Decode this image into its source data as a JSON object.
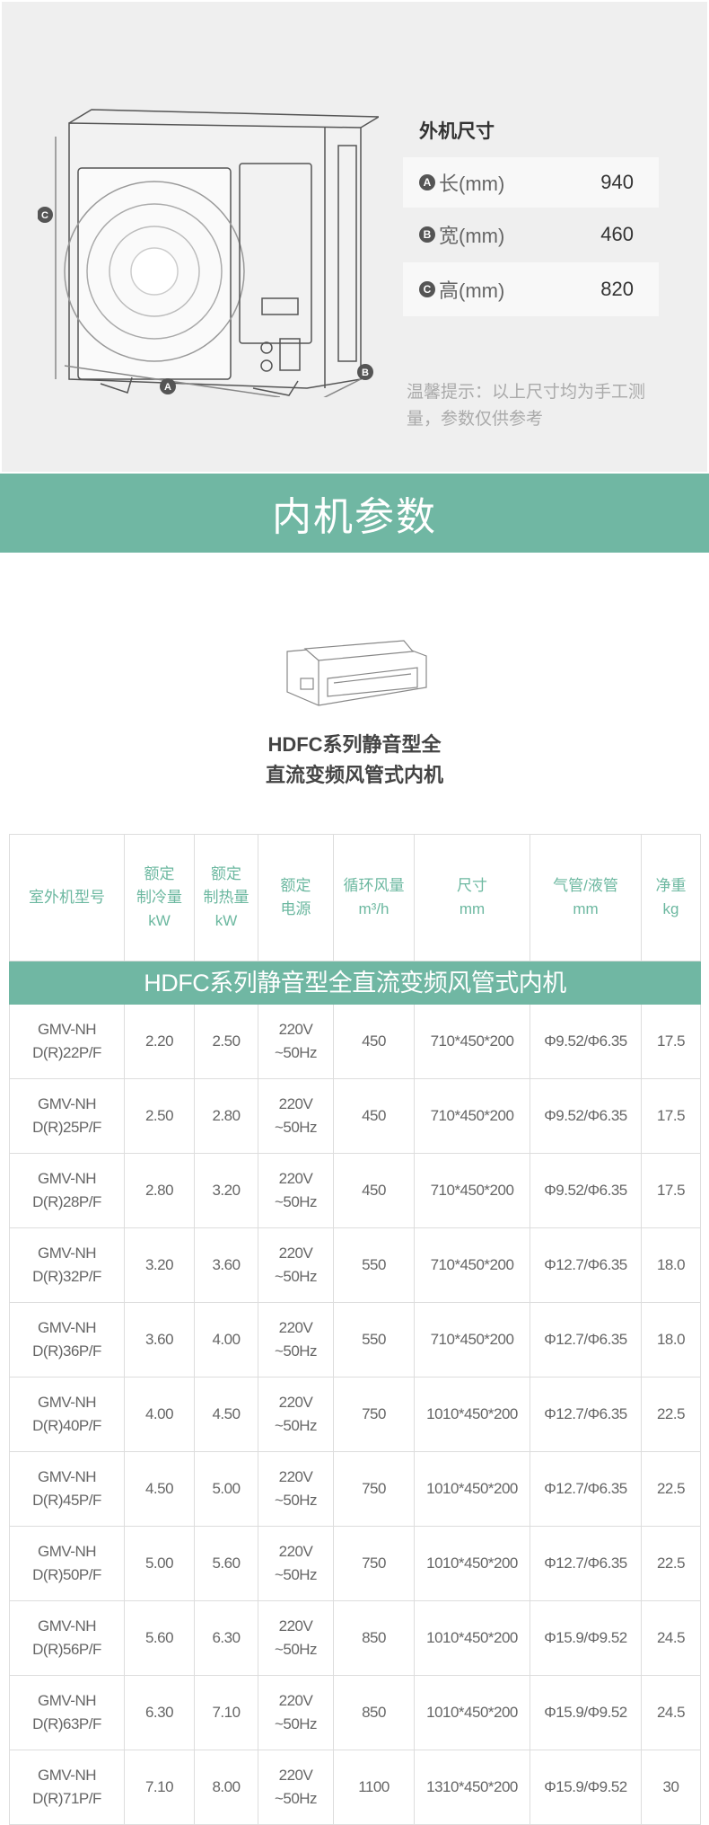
{
  "outdoor": {
    "title": "外机尺寸",
    "dims": [
      {
        "badge": "A",
        "label": "长(mm)",
        "value": "940"
      },
      {
        "badge": "B",
        "label": "宽(mm)",
        "value": "460"
      },
      {
        "badge": "C",
        "label": "高(mm)",
        "value": "820"
      }
    ],
    "note": "温馨提示：以上尺寸均为手工测量，参数仅供参考",
    "diagram_labels": {
      "a": "A",
      "b": "B",
      "c": "C"
    }
  },
  "section_title": "内机参数",
  "product_title_line1": "HDFC系列静音型全",
  "product_title_line2": "直流变频风管式内机",
  "colors": {
    "accent": "#70b7a3",
    "header_text": "#6cb8a0"
  },
  "table": {
    "headers": [
      "室外机型号",
      "额定\n制冷量\nkW",
      "额定\n制热量\nkW",
      "额定\n电源",
      "循环风量\nm³/h",
      "尺寸\nmm",
      "气管/液管\nmm",
      "净重\nkg"
    ],
    "series": "HDFC系列静音型全直流变频风管式内机",
    "rows": [
      [
        "GMV-NH\nD(R)22P/F",
        "2.20",
        "2.50",
        "220V\n~50Hz",
        "450",
        "710*450*200",
        "Φ9.52/Φ6.35",
        "17.5"
      ],
      [
        "GMV-NH\nD(R)25P/F",
        "2.50",
        "2.80",
        "220V\n~50Hz",
        "450",
        "710*450*200",
        "Φ9.52/Φ6.35",
        "17.5"
      ],
      [
        "GMV-NH\nD(R)28P/F",
        "2.80",
        "3.20",
        "220V\n~50Hz",
        "450",
        "710*450*200",
        "Φ9.52/Φ6.35",
        "17.5"
      ],
      [
        "GMV-NH\nD(R)32P/F",
        "3.20",
        "3.60",
        "220V\n~50Hz",
        "550",
        "710*450*200",
        "Φ12.7/Φ6.35",
        "18.0"
      ],
      [
        "GMV-NH\nD(R)36P/F",
        "3.60",
        "4.00",
        "220V\n~50Hz",
        "550",
        "710*450*200",
        "Φ12.7/Φ6.35",
        "18.0"
      ],
      [
        "GMV-NH\nD(R)40P/F",
        "4.00",
        "4.50",
        "220V\n~50Hz",
        "750",
        "1010*450*200",
        "Φ12.7/Φ6.35",
        "22.5"
      ],
      [
        "GMV-NH\nD(R)45P/F",
        "4.50",
        "5.00",
        "220V\n~50Hz",
        "750",
        "1010*450*200",
        "Φ12.7/Φ6.35",
        "22.5"
      ],
      [
        "GMV-NH\nD(R)50P/F",
        "5.00",
        "5.60",
        "220V\n~50Hz",
        "750",
        "1010*450*200",
        "Φ12.7/Φ6.35",
        "22.5"
      ],
      [
        "GMV-NH\nD(R)56P/F",
        "5.60",
        "6.30",
        "220V\n~50Hz",
        "850",
        "1010*450*200",
        "Φ15.9/Φ9.52",
        "24.5"
      ],
      [
        "GMV-NH\nD(R)63P/F",
        "6.30",
        "7.10",
        "220V\n~50Hz",
        "850",
        "1010*450*200",
        "Φ15.9/Φ9.52",
        "24.5"
      ],
      [
        "GMV-NH\nD(R)71P/F",
        "7.10",
        "8.00",
        "220V\n~50Hz",
        "1100",
        "1310*450*200",
        "Φ15.9/Φ9.52",
        "30"
      ]
    ]
  }
}
